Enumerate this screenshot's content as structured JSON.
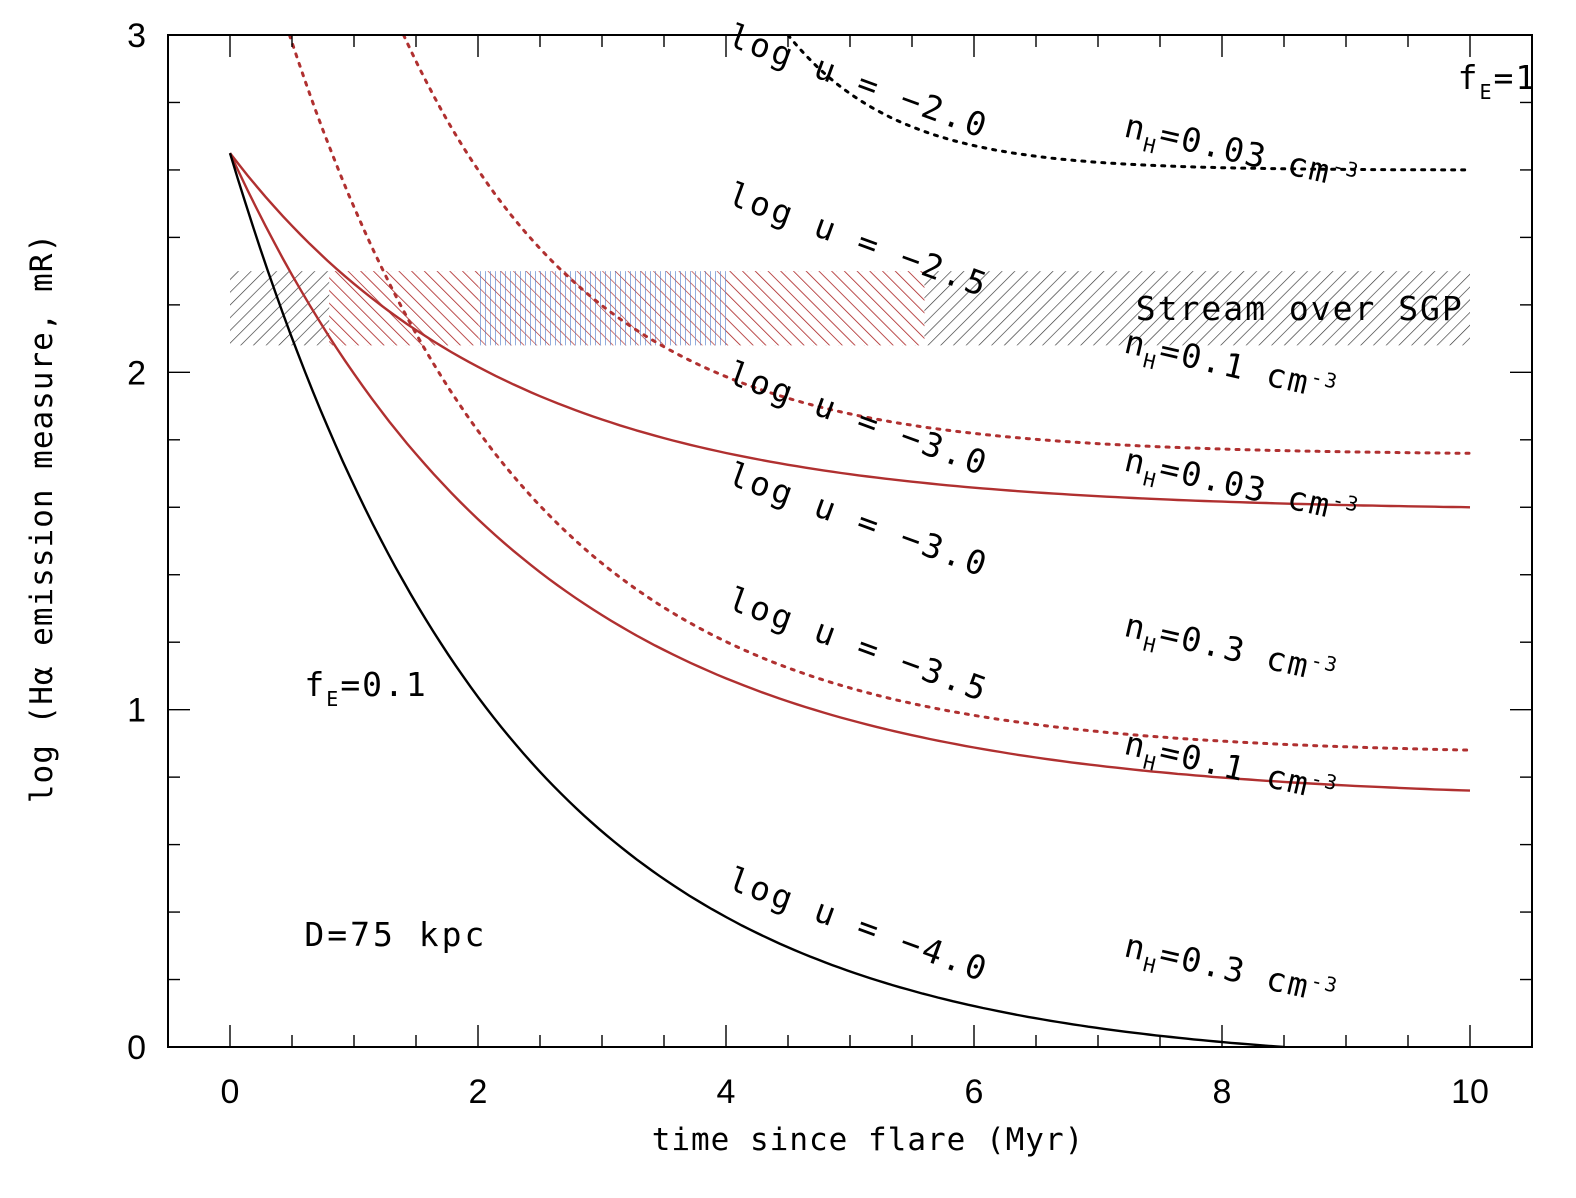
{
  "chart_data": {
    "type": "line",
    "title": "",
    "xlabel": "time since flare (Myr)",
    "ylabel": "log (Hα emission measure, mR)",
    "xlim": [
      -0.5,
      10.5
    ],
    "ylim": [
      0,
      3
    ],
    "xticks": [
      "0",
      "2",
      "4",
      "6",
      "8",
      "10"
    ],
    "yticks": [
      "0",
      "1",
      "2",
      "3"
    ],
    "colors": {
      "black": "#000000",
      "red": "#b03030",
      "blue": "#4a78c8"
    },
    "band": {
      "label": "Stream over SGP",
      "y_range": [
        2.08,
        2.3
      ],
      "x_range": [
        0,
        10
      ],
      "red_x_range": [
        0.8,
        5.6
      ],
      "blue_x_range": [
        2.0,
        4.0
      ]
    },
    "series": [
      {
        "name": "fE=1 nH=0.03 logu=-2.0",
        "color": "black",
        "dash": true,
        "x": [
          4.5,
          10
        ],
        "y": [
          3.0,
          2.6
        ]
      },
      {
        "name": "fE=1 nH=0.1 logu=-2.5",
        "color": "red",
        "dash": true,
        "x": [
          1.4,
          10
        ],
        "y": [
          3.0,
          1.76
        ]
      },
      {
        "name": "fE=1 nH=0.3 logu=-3.0",
        "color": "red",
        "dash": true,
        "x": [
          0.48,
          10
        ],
        "y": [
          3.0,
          0.88
        ]
      },
      {
        "name": "fE=0.1 nH=0.03 logu=-3.0",
        "color": "red",
        "dash": false,
        "x": [
          0,
          10
        ],
        "y": [
          2.65,
          1.6
        ]
      },
      {
        "name": "fE=0.1 nH=0.1 logu=-3.5",
        "color": "red",
        "dash": false,
        "x": [
          0,
          10
        ],
        "y": [
          2.65,
          0.76
        ]
      },
      {
        "name": "fE=0.1 nH=0.3 logu=-4.0",
        "color": "black",
        "dash": false,
        "x": [
          0,
          8.5
        ],
        "y": [
          2.65,
          0.0
        ]
      }
    ],
    "annotations": [
      {
        "text": "log u = −2.0",
        "x": 4.0,
        "y": 3.0
      },
      {
        "text": "log u = −2.5",
        "x": 4.0,
        "y": 2.53
      },
      {
        "text": "log u = −3.0",
        "x": 4.0,
        "y": 2.0
      },
      {
        "text": "log u = −3.0",
        "x": 4.0,
        "y": 1.7
      },
      {
        "text": "log u = −3.5",
        "x": 4.0,
        "y": 1.33
      },
      {
        "text": "log u = −4.0",
        "x": 4.0,
        "y": 0.5
      }
    ],
    "density_labels": [
      {
        "pre": "n",
        "sub": "H",
        "post": "=0.03 cm",
        "sup": "-3",
        "x": 7.2,
        "y": 2.7
      },
      {
        "pre": "n",
        "sub": "H",
        "post": "=0.1 cm",
        "sup": "-3",
        "x": 7.2,
        "y": 2.06
      },
      {
        "pre": "n",
        "sub": "H",
        "post": "=0.03 cm",
        "sup": "-3",
        "x": 7.2,
        "y": 1.71
      },
      {
        "pre": "n",
        "sub": "H",
        "post": "=0.3 cm",
        "sup": "-3",
        "x": 7.2,
        "y": 1.22
      },
      {
        "pre": "n",
        "sub": "H",
        "post": "=0.1 cm",
        "sup": "-3",
        "x": 7.2,
        "y": 0.87
      },
      {
        "pre": "n",
        "sub": "H",
        "post": "=0.3 cm",
        "sup": "-3",
        "x": 7.2,
        "y": 0.27
      }
    ],
    "label_fE1": {
      "pre": "f",
      "sub": "E",
      "post": "=1"
    },
    "label_fE01": {
      "pre": "f",
      "sub": "E",
      "post": "=0.1"
    },
    "label_distance": "D=75 kpc"
  }
}
